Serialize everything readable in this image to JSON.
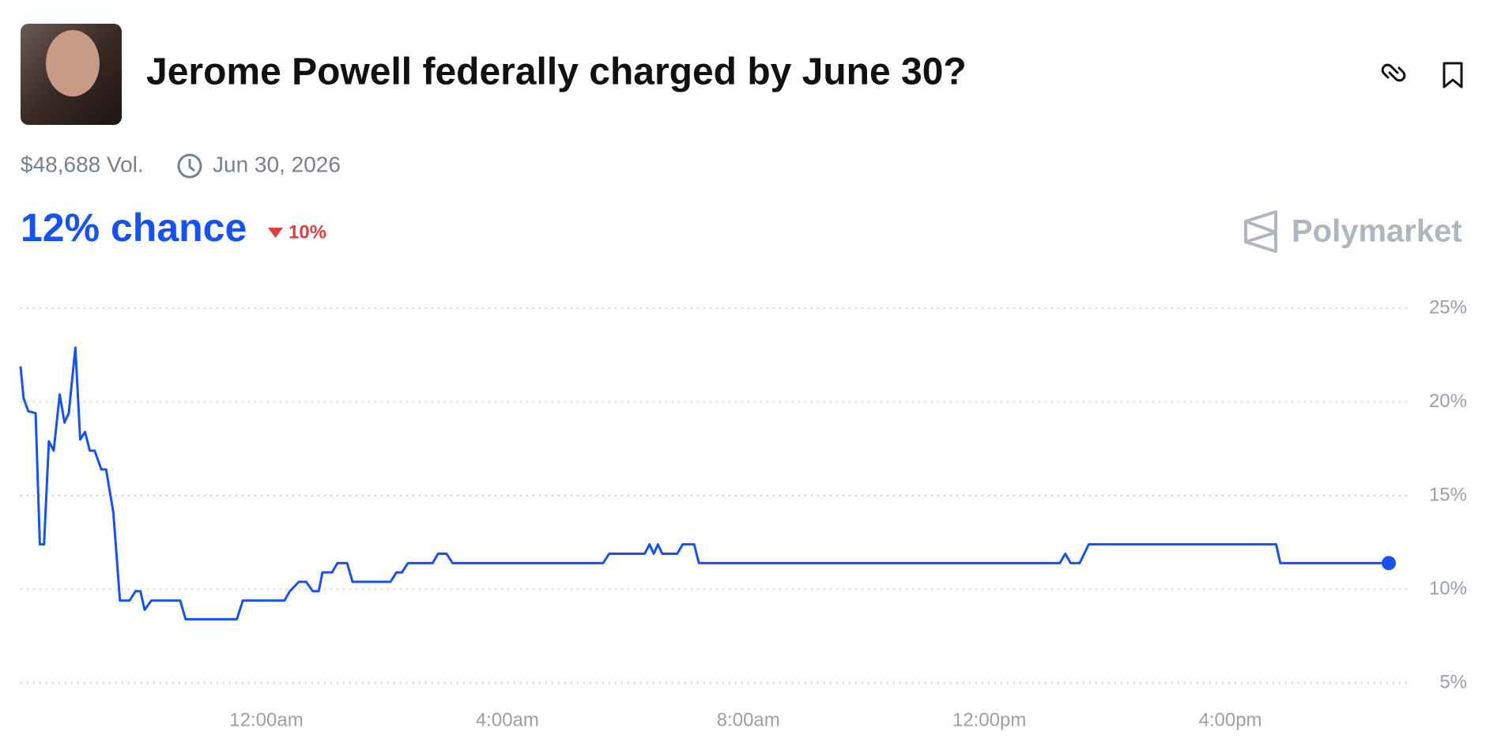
{
  "header": {
    "title": "Jerome Powell federally charged by June 30?",
    "volume": "$48,688 Vol.",
    "end_date": "Jun 30, 2026",
    "chance": "12% chance",
    "change": "10%",
    "brand": "Polymarket"
  },
  "chart_data": {
    "type": "line",
    "color": "#1652f0",
    "grid": true,
    "x": [
      -4.08,
      -4.03,
      -3.95,
      -3.83,
      -3.76,
      -3.69,
      -3.61,
      -3.53,
      -3.43,
      -3.35,
      -3.28,
      -3.17,
      -3.09,
      -3.01,
      -2.93,
      -2.85,
      -2.74,
      -2.66,
      -2.54,
      -2.43,
      -2.27,
      -2.17,
      -2.09,
      -2.02,
      -1.91,
      -1.43,
      -1.34,
      -0.49,
      -0.39,
      0.3,
      0.39,
      0.54,
      0.66,
      0.77,
      0.87,
      0.93,
      1.09,
      1.18,
      1.34,
      1.43,
      2.06,
      2.16,
      2.25,
      2.35,
      2.76,
      2.85,
      2.99,
      3.09,
      5.59,
      5.69,
      6.28,
      6.36,
      6.43,
      6.5,
      6.57,
      6.82,
      6.91,
      7.1,
      7.18,
      13.17,
      13.26,
      13.35,
      13.5,
      13.65,
      16.76,
      16.83,
      18.63
    ],
    "values": [
      21.9,
      20.2,
      19.5,
      19.4,
      12.4,
      12.4,
      17.9,
      17.4,
      20.4,
      18.9,
      19.4,
      22.9,
      18.0,
      18.4,
      17.4,
      17.4,
      16.4,
      16.4,
      14.1,
      9.4,
      9.4,
      9.9,
      9.9,
      8.9,
      9.4,
      9.4,
      8.4,
      8.4,
      9.4,
      9.4,
      9.9,
      10.4,
      10.4,
      9.9,
      9.9,
      10.9,
      10.9,
      11.4,
      11.4,
      10.4,
      10.4,
      10.9,
      10.9,
      11.4,
      11.4,
      11.9,
      11.9,
      11.4,
      11.4,
      11.9,
      11.9,
      12.4,
      11.9,
      12.4,
      11.9,
      11.9,
      12.4,
      12.4,
      11.4,
      11.4,
      11.9,
      11.4,
      11.4,
      12.4,
      12.4,
      11.4,
      11.4
    ],
    "xlim": [
      -4.08,
      18.63
    ],
    "xticks": [
      {
        "value": 0,
        "label": "12:00am"
      },
      {
        "value": 4,
        "label": "4:00am"
      },
      {
        "value": 8,
        "label": "8:00am"
      },
      {
        "value": 12,
        "label": "12:00pm"
      },
      {
        "value": 16,
        "label": "4:00pm"
      }
    ],
    "ylim": [
      5,
      25
    ],
    "yticks": [
      {
        "value": 5,
        "label": "5%"
      },
      {
        "value": 10,
        "label": "10%"
      },
      {
        "value": 15,
        "label": "15%"
      },
      {
        "value": 20,
        "label": "20%"
      },
      {
        "value": 25,
        "label": "25%"
      }
    ]
  }
}
